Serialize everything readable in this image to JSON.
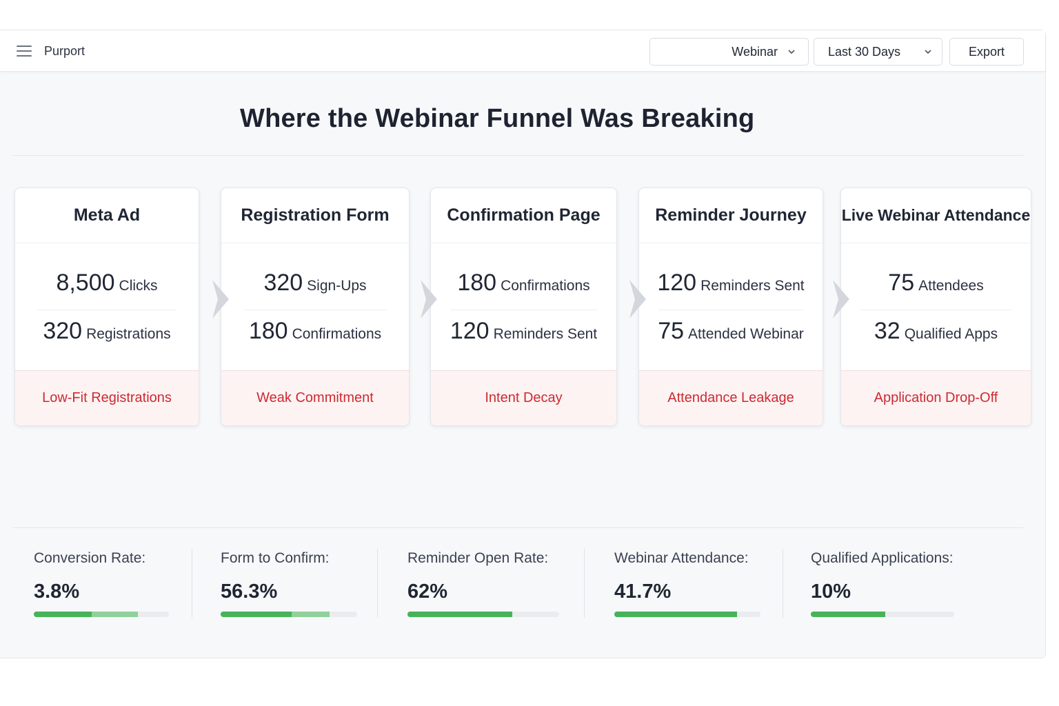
{
  "header": {
    "brand": "Purport",
    "filter_label": "Webinar",
    "date_range": "Last 30 Days",
    "export_label": "Export"
  },
  "page": {
    "title": "Where the Webinar Funnel Was Breaking"
  },
  "stages": [
    {
      "title": "Meta Ad",
      "metrics": [
        {
          "value": "8,500",
          "label": "Clicks"
        },
        {
          "value": "320",
          "label": "Registrations"
        }
      ],
      "issue": "Low-Fit Registrations"
    },
    {
      "title": "Registration Form",
      "metrics": [
        {
          "value": "320",
          "label": "Sign-Ups"
        },
        {
          "value": "180",
          "label": "Confirmations"
        }
      ],
      "issue": "Weak Commitment"
    },
    {
      "title": "Confirmation Page",
      "metrics": [
        {
          "value": "180",
          "label": "Confirmations"
        },
        {
          "value": "120",
          "label": "Reminders Sent"
        }
      ],
      "issue": "Intent Decay"
    },
    {
      "title": "Reminder Journey",
      "metrics": [
        {
          "value": "120",
          "label": "Reminders Sent"
        },
        {
          "value": "75",
          "label": "Attended Webinar"
        }
      ],
      "issue": "Attendance Leakage"
    },
    {
      "title": "Live Webinar Attendance",
      "metrics": [
        {
          "value": "75",
          "label": "Attendees"
        },
        {
          "value": "32",
          "label": "Qualified Apps"
        }
      ],
      "issue": "Application Drop-Off"
    }
  ],
  "kpis": [
    {
      "label": "Conversion Rate:",
      "value": "3.8%",
      "progress_primary": 0.43,
      "progress_secondary": 0.77
    },
    {
      "label": "Form to Confirm:",
      "value": "56.3%",
      "progress_primary": 0.52,
      "progress_secondary": 0.8
    },
    {
      "label": "Reminder Open Rate:",
      "value": "62%",
      "progress_primary": 0.69,
      "progress_secondary": 0.69
    },
    {
      "label": "Webinar Attendance:",
      "value": "41.7%",
      "progress_primary": 0.84,
      "progress_secondary": 0.84
    },
    {
      "label": "Qualified Applications:",
      "value": "10%",
      "progress_primary": 0.52,
      "progress_secondary": 0.52
    }
  ],
  "colors": {
    "issue_text": "#cc2a31",
    "issue_bg": "#fdf3f3",
    "progress_dark": "#46b35a",
    "progress_light": "#8fd19a"
  },
  "icons": {
    "menu": "hamburger-menu-icon",
    "dropdown": "chevron-down-icon",
    "stage_arrow": "chevron-right-icon"
  }
}
